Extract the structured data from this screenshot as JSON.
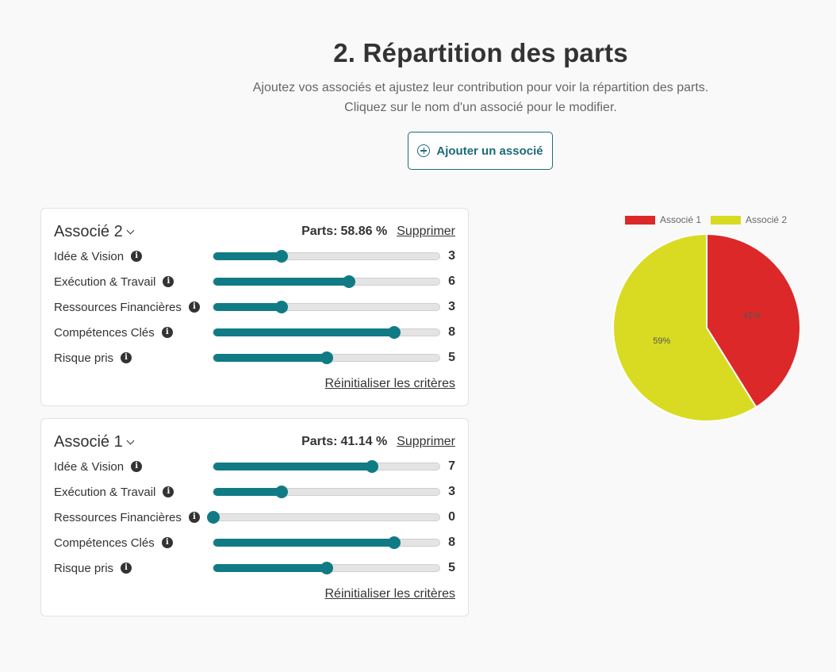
{
  "header": {
    "title": "2. Répartition des parts",
    "subtitle_line1": "Ajoutez vos associés et ajustez leur contribution pour voir la répartition des parts.",
    "subtitle_line2": "Cliquez sur le nom d'un associé pour le modifier."
  },
  "add_button": {
    "label": "Ajouter un associé",
    "icon": "plus-circle-icon"
  },
  "slider_max": 10,
  "associates": [
    {
      "name": "Associé 2",
      "parts_label": "Parts:",
      "parts_value": "58.86 %",
      "delete_label": "Supprimer",
      "reset_label": "Réinitialiser les critères",
      "criteria": [
        {
          "label": "Idée & Vision",
          "value": 3
        },
        {
          "label": "Exécution & Travail",
          "value": 6
        },
        {
          "label": "Ressources Financières",
          "value": 3
        },
        {
          "label": "Compétences Clés",
          "value": 8
        },
        {
          "label": "Risque pris",
          "value": 5
        }
      ]
    },
    {
      "name": "Associé 1",
      "parts_label": "Parts:",
      "parts_value": "41.14 %",
      "delete_label": "Supprimer",
      "reset_label": "Réinitialiser les critères",
      "criteria": [
        {
          "label": "Idée & Vision",
          "value": 7
        },
        {
          "label": "Exécution & Travail",
          "value": 3
        },
        {
          "label": "Ressources Financières",
          "value": 0
        },
        {
          "label": "Compétences Clés",
          "value": 8
        },
        {
          "label": "Risque pris",
          "value": 5
        }
      ]
    }
  ],
  "colors": {
    "accent": "#107b85",
    "button_border": "#1b6b78"
  },
  "chart_data": {
    "type": "pie",
    "title": "",
    "legend_position": "top",
    "series": [
      {
        "name": "Associé 1",
        "value": 41.14,
        "label": "41%",
        "color": "#dc2828"
      },
      {
        "name": "Associé 2",
        "value": 58.86,
        "label": "59%",
        "color": "#d9db23"
      }
    ]
  }
}
